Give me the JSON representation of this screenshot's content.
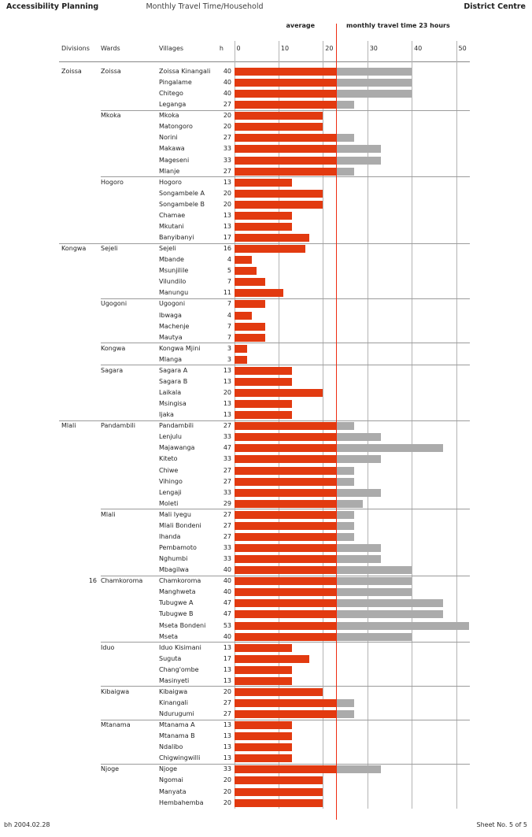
{
  "header": {
    "left": "Accessibility Planning",
    "center": "Monthly Travel Time/Household",
    "right": "District Centre"
  },
  "legend": {
    "average_label": "average",
    "threshold_label": "monthly travel time 23 hours",
    "threshold_hours": 23
  },
  "columns": {
    "divisions": "Divisions",
    "wards": "Wards",
    "villages": "Villages",
    "hours": "h"
  },
  "footer": {
    "left": "bh 2004.02.28",
    "right": "Sheet No. 5 of 5"
  },
  "colors": {
    "bar_within": "#e23a10",
    "bar_excess": "#ababab",
    "threshold_line": "#ee2c12",
    "gridline": "#b4b4b4",
    "separator": "#9b9b9b"
  },
  "chart_data": {
    "type": "bar",
    "orientation": "horizontal",
    "title": "Monthly Travel Time/Household",
    "value_unit": "hours",
    "xlabel": "monthly travel time (hours)",
    "axis_ticks": [
      0,
      10,
      20,
      30,
      40,
      50
    ],
    "xlim": [
      0,
      50
    ],
    "threshold": 23,
    "threshold_meaning": "average monthly travel time 23 hours; red = up to 23 h, gray = excess above 23 h",
    "divisions": [
      {
        "name": "Zoissa",
        "wards": [
          {
            "name": "Zoissa",
            "prefix": "",
            "villages": [
              {
                "name": "Zoissa Kinangali",
                "hours": 40
              },
              {
                "name": "Pingalame",
                "hours": 40
              },
              {
                "name": "Chitego",
                "hours": 40
              },
              {
                "name": "Leganga",
                "hours": 27
              }
            ]
          },
          {
            "name": "Mkoka",
            "prefix": "",
            "villages": [
              {
                "name": "Mkoka",
                "hours": 20
              },
              {
                "name": "Matongoro",
                "hours": 20
              },
              {
                "name": "Norini",
                "hours": 27
              },
              {
                "name": "Makawa",
                "hours": 33
              },
              {
                "name": "Mageseni",
                "hours": 33
              },
              {
                "name": "Mlanje",
                "hours": 27
              }
            ]
          },
          {
            "name": "Hogoro",
            "prefix": "",
            "villages": [
              {
                "name": "Hogoro",
                "hours": 13
              },
              {
                "name": "Songambele A",
                "hours": 20
              },
              {
                "name": "Songambele B",
                "hours": 20
              },
              {
                "name": "Chamae",
                "hours": 13
              },
              {
                "name": "Mkutani",
                "hours": 13
              },
              {
                "name": "Banyibanyi",
                "hours": 17
              }
            ]
          }
        ]
      },
      {
        "name": "Kongwa",
        "wards": [
          {
            "name": "Sejeli",
            "prefix": "",
            "villages": [
              {
                "name": "Sejeli",
                "hours": 16
              },
              {
                "name": "Mbande",
                "hours": 4
              },
              {
                "name": "Msunjilile",
                "hours": 5
              },
              {
                "name": "Vilundilo",
                "hours": 7
              },
              {
                "name": "Manungu",
                "hours": 11
              }
            ]
          },
          {
            "name": "Ugogoni",
            "prefix": "",
            "villages": [
              {
                "name": "Ugogoni",
                "hours": 7
              },
              {
                "name": "Ibwaga",
                "hours": 4
              },
              {
                "name": "Machenje",
                "hours": 7
              },
              {
                "name": "Mautya",
                "hours": 7
              }
            ]
          },
          {
            "name": "Kongwa",
            "prefix": "",
            "villages": [
              {
                "name": "Kongwa Mjini",
                "hours": 3
              },
              {
                "name": "Mlanga",
                "hours": 3
              }
            ]
          },
          {
            "name": "Sagara",
            "prefix": "",
            "villages": [
              {
                "name": "Sagara A",
                "hours": 13
              },
              {
                "name": "Sagara B",
                "hours": 13
              },
              {
                "name": "Laikala",
                "hours": 20
              },
              {
                "name": "Msingisa",
                "hours": 13
              },
              {
                "name": "Ijaka",
                "hours": 13
              }
            ]
          }
        ]
      },
      {
        "name": "Mlali",
        "wards": [
          {
            "name": "Pandambili",
            "prefix": "",
            "villages": [
              {
                "name": "Pandambili",
                "hours": 27
              },
              {
                "name": "Lenjulu",
                "hours": 33
              },
              {
                "name": "Majawanga",
                "hours": 47
              },
              {
                "name": "Kiteto",
                "hours": 33
              },
              {
                "name": "Chiwe",
                "hours": 27
              },
              {
                "name": "Vihingo",
                "hours": 27
              },
              {
                "name": "Lengaji",
                "hours": 33
              },
              {
                "name": "Moleti",
                "hours": 29
              }
            ]
          },
          {
            "name": "Mlali",
            "prefix": "",
            "villages": [
              {
                "name": "Mali Iyegu",
                "hours": 27
              },
              {
                "name": "Mlali Bondeni",
                "hours": 27
              },
              {
                "name": "Ihanda",
                "hours": 27
              },
              {
                "name": "Pembamoto",
                "hours": 33
              },
              {
                "name": "Nghumbi",
                "hours": 33
              },
              {
                "name": "Mbagilwa",
                "hours": 40
              }
            ]
          },
          {
            "name": "Chamkoroma",
            "prefix": "16",
            "villages": [
              {
                "name": "Chamkoroma",
                "hours": 40
              },
              {
                "name": "Manghweta",
                "hours": 40
              },
              {
                "name": "Tubugwe A",
                "hours": 47
              },
              {
                "name": "Tubugwe B",
                "hours": 47
              },
              {
                "name": "Mseta Bondeni",
                "hours": 53
              },
              {
                "name": "Mseta",
                "hours": 40
              }
            ]
          },
          {
            "name": "Iduo",
            "prefix": "",
            "villages": [
              {
                "name": "Iduo Kisimani",
                "hours": 13
              },
              {
                "name": "Suguta",
                "hours": 17
              },
              {
                "name": "Chang'ombe",
                "hours": 13
              },
              {
                "name": "Masinyeti",
                "hours": 13
              }
            ]
          },
          {
            "name": "Kibaigwa",
            "prefix": "",
            "villages": [
              {
                "name": "Kibaigwa",
                "hours": 20
              },
              {
                "name": "Kinangali",
                "hours": 27
              },
              {
                "name": "Ndurugumi",
                "hours": 27
              }
            ]
          },
          {
            "name": "Mtanama",
            "prefix": "",
            "villages": [
              {
                "name": "Mtanama A",
                "hours": 13
              },
              {
                "name": "Mtanama B",
                "hours": 13
              },
              {
                "name": "Ndalibo",
                "hours": 13
              },
              {
                "name": "Chigwingwilli",
                "hours": 13
              }
            ]
          },
          {
            "name": "Njoge",
            "prefix": "",
            "villages": [
              {
                "name": "Njoge",
                "hours": 33
              },
              {
                "name": "Ngomai",
                "hours": 20
              },
              {
                "name": "Manyata",
                "hours": 20
              },
              {
                "name": "Hembahemba",
                "hours": 20
              }
            ]
          }
        ]
      }
    ]
  }
}
